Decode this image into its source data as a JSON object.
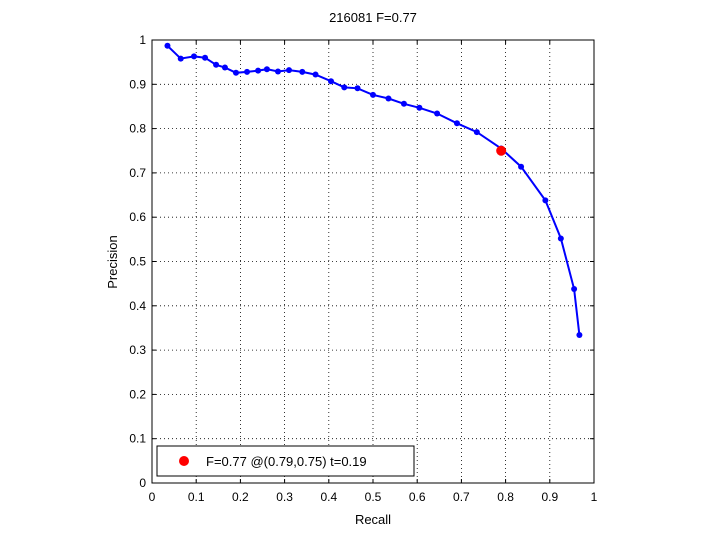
{
  "chart_data": {
    "type": "line",
    "title": "216081 F=0.77",
    "xlabel": "Recall",
    "ylabel": "Precision",
    "xlim": [
      0,
      1
    ],
    "ylim": [
      0,
      1
    ],
    "grid": true,
    "xticks": [
      "0",
      "0.1",
      "0.2",
      "0.3",
      "0.4",
      "0.5",
      "0.6",
      "0.7",
      "0.8",
      "0.9",
      "1"
    ],
    "yticks": [
      "0",
      "0.1",
      "0.2",
      "0.3",
      "0.4",
      "0.5",
      "0.6",
      "0.7",
      "0.8",
      "0.9",
      "1"
    ],
    "series": [
      {
        "color": "#0000ff",
        "x": [
          0.035,
          0.065,
          0.095,
          0.12,
          0.145,
          0.165,
          0.19,
          0.215,
          0.24,
          0.26,
          0.285,
          0.31,
          0.34,
          0.37,
          0.405,
          0.435,
          0.465,
          0.5,
          0.535,
          0.57,
          0.605,
          0.645,
          0.69,
          0.735,
          0.79,
          0.835,
          0.89,
          0.925,
          0.955,
          0.967
        ],
        "y": [
          0.987,
          0.958,
          0.963,
          0.96,
          0.944,
          0.938,
          0.926,
          0.928,
          0.931,
          0.934,
          0.929,
          0.932,
          0.928,
          0.922,
          0.907,
          0.893,
          0.891,
          0.876,
          0.868,
          0.856,
          0.847,
          0.834,
          0.812,
          0.792,
          0.755,
          0.714,
          0.638,
          0.552,
          0.438,
          0.334
        ]
      }
    ],
    "marker": {
      "x": 0.79,
      "y": 0.75,
      "color": "#ff0000"
    },
    "legend": {
      "text": "F=0.77 @(0.79,0.75) t=0.19",
      "position": "bottom-left"
    }
  }
}
